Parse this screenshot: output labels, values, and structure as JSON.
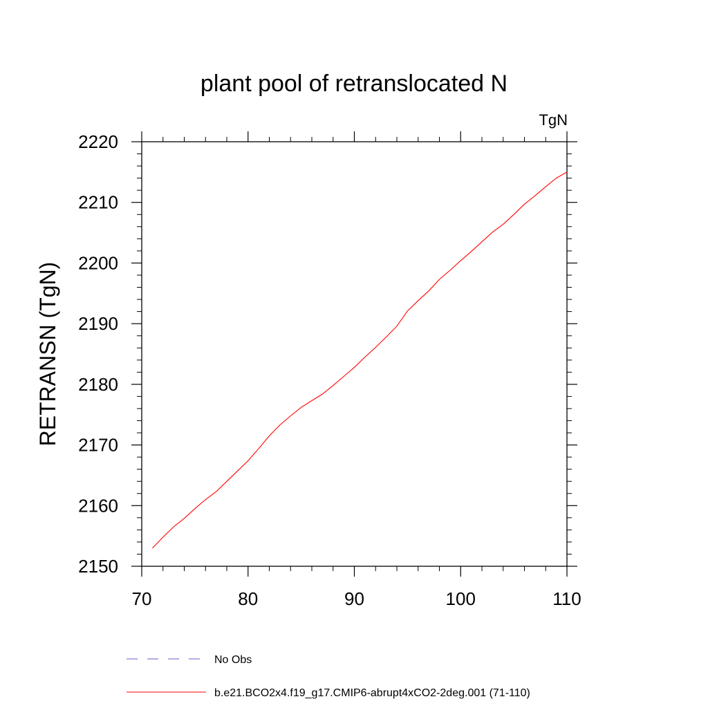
{
  "chart_data": {
    "type": "line",
    "title": "plant pool of retranslocated N",
    "units_label": "TgN",
    "xlabel": "",
    "ylabel": "RETRANSN  (TgN)",
    "xlim": [
      70,
      110
    ],
    "ylim": [
      2150,
      2220
    ],
    "x_ticks": [
      70,
      80,
      90,
      100,
      110
    ],
    "y_ticks": [
      2150,
      2160,
      2170,
      2180,
      2190,
      2200,
      2210,
      2220
    ],
    "grid": false,
    "legend_position": "bottom",
    "series": [
      {
        "name": "No Obs",
        "color": "#6a5acd",
        "dash": "dashed",
        "x": [],
        "y": []
      },
      {
        "name": "b.e21.BCO2x4.f19_g17.CMIP6-abrupt4xCO2-2deg.001 (71-110)",
        "color": "#ff0000",
        "dash": "solid",
        "x": [
          71,
          72,
          73,
          74,
          75,
          76,
          77,
          78,
          79,
          80,
          81,
          82,
          83,
          84,
          85,
          86,
          87,
          88,
          89,
          90,
          91,
          92,
          93,
          94,
          95,
          96,
          97,
          98,
          99,
          100,
          101,
          102,
          103,
          104,
          105,
          106,
          107,
          108,
          109,
          110
        ],
        "y": [
          2153.0,
          2154.8,
          2156.5,
          2157.9,
          2159.5,
          2161.0,
          2162.3,
          2164.0,
          2165.7,
          2167.4,
          2169.4,
          2171.5,
          2173.3,
          2174.8,
          2176.2,
          2177.3,
          2178.4,
          2179.8,
          2181.3,
          2182.8,
          2184.5,
          2186.1,
          2187.8,
          2189.6,
          2192.1,
          2193.8,
          2195.4,
          2197.3,
          2198.8,
          2200.4,
          2201.9,
          2203.5,
          2205.1,
          2206.4,
          2208.0,
          2209.7,
          2211.1,
          2212.6,
          2214.0,
          2215.0
        ]
      }
    ]
  }
}
